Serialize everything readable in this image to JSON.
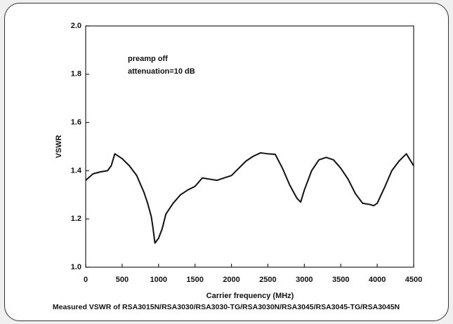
{
  "chart_data": {
    "type": "line",
    "ylabel": "VSWR",
    "xlabel": "Carrier frequency (MHz)",
    "caption": "Measured VSWR of RSA3015N/RSA3030/RSA3030-TG/RSA3030N/RSA3045/RSA3045-TG/RSA3045N",
    "annotations": [
      "preamp off",
      "attenuation=10 dB"
    ],
    "xlim": [
      0,
      4500
    ],
    "xticks": [
      0,
      500,
      1000,
      1500,
      2000,
      2500,
      3000,
      3500,
      4000,
      4500
    ],
    "ylim": [
      1,
      2
    ],
    "yticks": [
      {
        "value": 1,
        "label": "1.0"
      },
      1.2,
      1.4,
      1.6,
      1.8,
      {
        "value": 2,
        "label": "2.0"
      }
    ],
    "series": [
      {
        "color": "#111111",
        "x": [
          0,
          100,
          200,
          300,
          350,
          400,
          500,
          600,
          700,
          800,
          850,
          900,
          920,
          950,
          1000,
          1050,
          1100,
          1200,
          1300,
          1400,
          1500,
          1600,
          1700,
          1800,
          1900,
          2000,
          2100,
          2200,
          2300,
          2400,
          2500,
          2600,
          2700,
          2800,
          2900,
          2950,
          3000,
          3100,
          3200,
          3300,
          3400,
          3500,
          3600,
          3700,
          3800,
          3900,
          3950,
          4000,
          4100,
          4200,
          4300,
          4400,
          4500
        ],
        "values": [
          1.36,
          1.387,
          1.395,
          1.4,
          1.42,
          1.47,
          1.45,
          1.42,
          1.38,
          1.31,
          1.265,
          1.21,
          1.17,
          1.1,
          1.12,
          1.16,
          1.22,
          1.265,
          1.3,
          1.32,
          1.335,
          1.37,
          1.365,
          1.36,
          1.37,
          1.38,
          1.41,
          1.44,
          1.46,
          1.474,
          1.47,
          1.468,
          1.41,
          1.34,
          1.285,
          1.27,
          1.32,
          1.4,
          1.445,
          1.455,
          1.445,
          1.41,
          1.365,
          1.305,
          1.265,
          1.26,
          1.255,
          1.265,
          1.33,
          1.4,
          1.44,
          1.47,
          1.42
        ]
      }
    ]
  }
}
